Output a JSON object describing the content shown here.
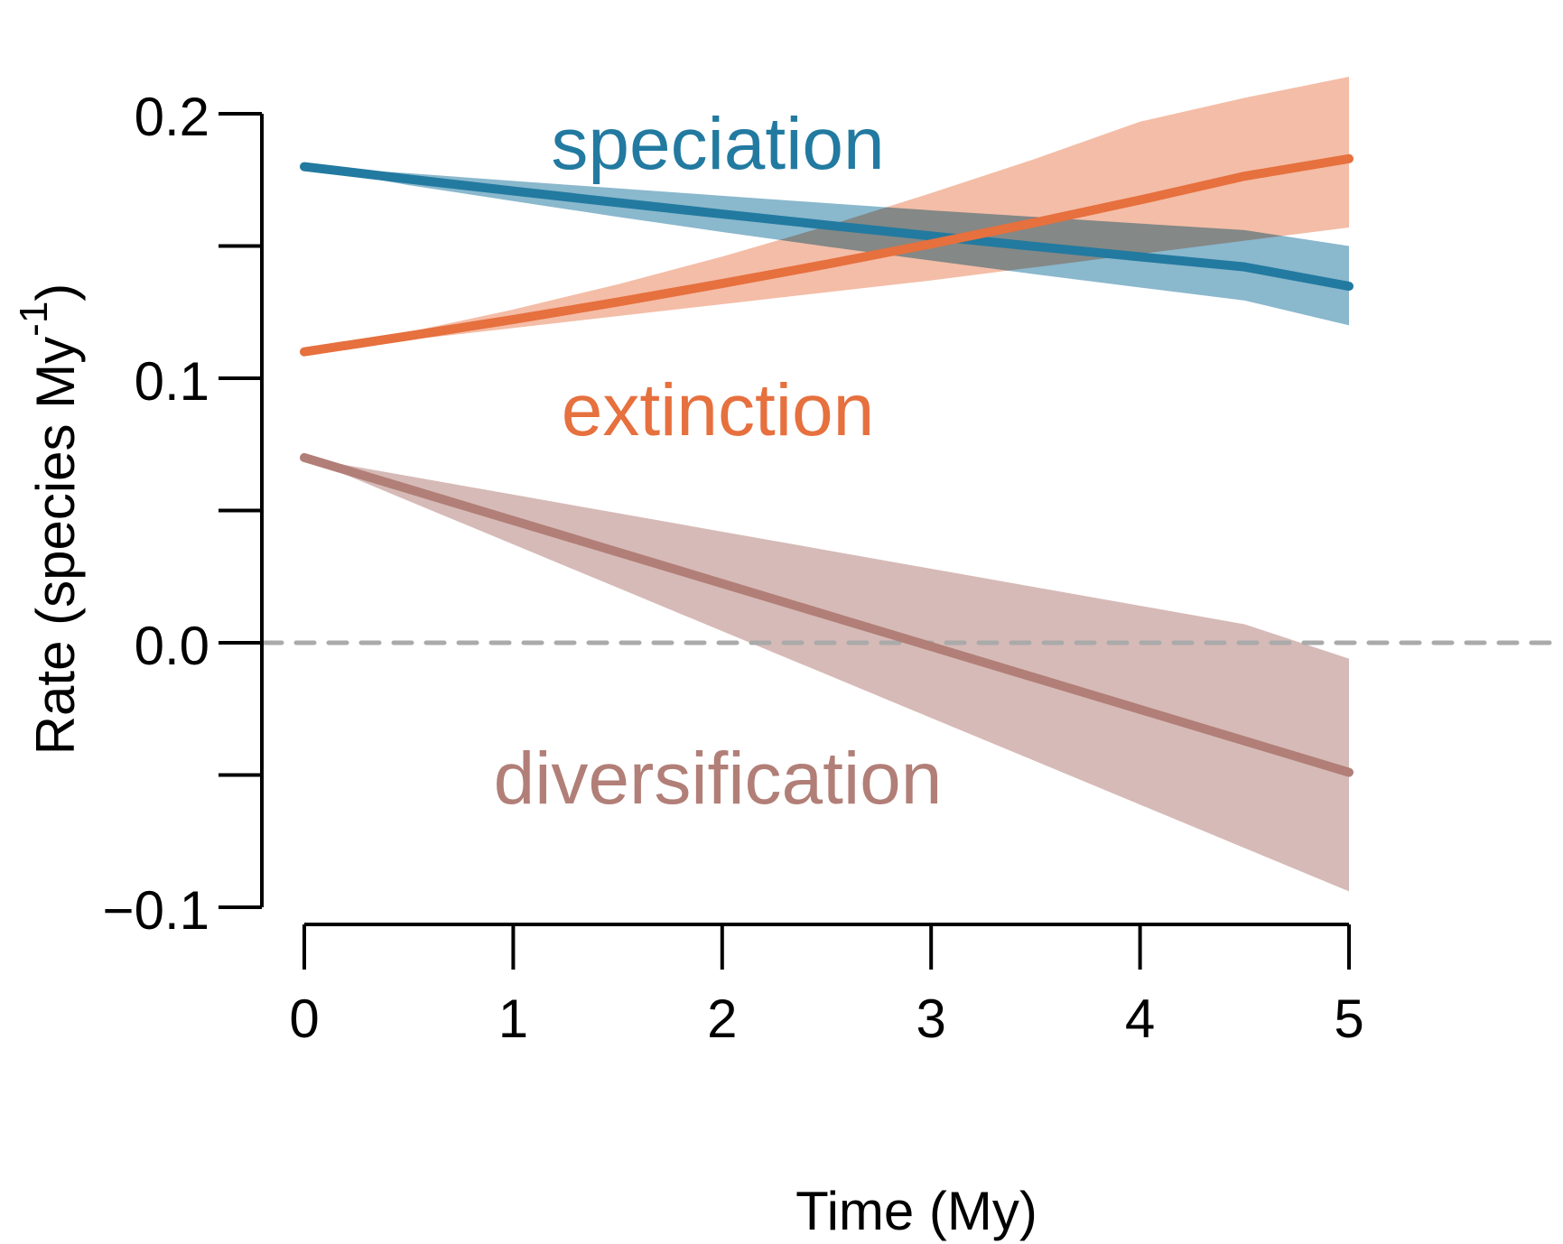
{
  "chart_data": {
    "type": "line",
    "title": "",
    "xlabel": "Time (My)",
    "ylabel": "Rate (species My",
    "ylabel_superscript": "-1",
    "ylabel_close": ")",
    "xlim": [
      0,
      5
    ],
    "ylim": [
      -0.1,
      0.2
    ],
    "x_ticks": [
      0,
      1,
      2,
      3,
      4,
      5
    ],
    "x_tick_labels": [
      "0",
      "1",
      "2",
      "3",
      "4",
      "5"
    ],
    "y_ticks": [
      -0.1,
      -0.05,
      0.0,
      0.05,
      0.1,
      0.15,
      0.2
    ],
    "y_tick_labels": [
      "−0.1",
      "",
      "0.0",
      "",
      "0.1",
      "",
      "0.2"
    ],
    "grid": false,
    "reference_line": {
      "y": 0.0,
      "style": "dashed",
      "color": "#aaaaaa"
    },
    "x": [
      0,
      0.5,
      1,
      1.5,
      2,
      2.5,
      3,
      3.5,
      4,
      4.5,
      5
    ],
    "series": [
      {
        "name": "speciation",
        "label": "speciation",
        "color": "#227aa0",
        "band_color": "#8ab8cd",
        "values": [
          0.18,
          0.1753,
          0.1708,
          0.1664,
          0.1621,
          0.1579,
          0.1538,
          0.1498,
          0.1459,
          0.1421,
          0.1348
        ],
        "upper": [
          0.18,
          0.1775,
          0.1746,
          0.1718,
          0.169,
          0.1662,
          0.1635,
          0.161,
          0.1585,
          0.156,
          0.15
        ],
        "lower": [
          0.18,
          0.173,
          0.167,
          0.161,
          0.1553,
          0.1498,
          0.1445,
          0.1393,
          0.1343,
          0.1294,
          0.12
        ]
      },
      {
        "name": "extinction",
        "label": "extinction",
        "color": "#e6703e",
        "band_color": "#f2b298",
        "values": [
          0.11,
          0.116,
          0.1222,
          0.1288,
          0.1358,
          0.1431,
          0.1508,
          0.1589,
          0.1674,
          0.1764,
          0.183
        ],
        "upper": [
          0.11,
          0.1175,
          0.126,
          0.1355,
          0.146,
          0.1575,
          0.17,
          0.183,
          0.197,
          0.206,
          0.214
        ],
        "lower": [
          0.11,
          0.1145,
          0.119,
          0.1235,
          0.128,
          0.1325,
          0.137,
          0.142,
          0.147,
          0.152,
          0.157
        ]
      },
      {
        "name": "diversification",
        "label": "diversification",
        "color": "#b17f77",
        "band_color": "#d6bab7",
        "values": [
          0.07,
          0.0581,
          0.0462,
          0.0343,
          0.0224,
          0.0105,
          -0.0014,
          -0.0133,
          -0.0252,
          -0.0371,
          -0.049
        ],
        "upper": [
          0.07,
          0.063,
          0.056,
          0.049,
          0.042,
          0.035,
          0.028,
          0.021,
          0.014,
          0.007,
          -0.006
        ],
        "lower": [
          0.07,
          0.0536,
          0.0372,
          0.0208,
          0.0044,
          -0.012,
          -0.0284,
          -0.0448,
          -0.0612,
          -0.0776,
          -0.094
        ]
      }
    ]
  }
}
